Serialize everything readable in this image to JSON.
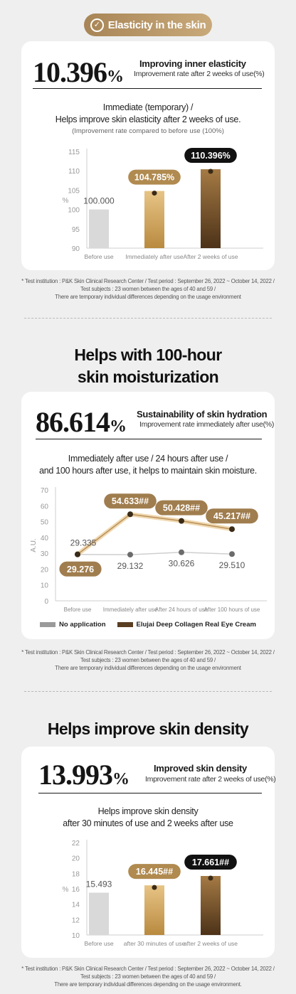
{
  "badge": {
    "label": "Elasticity in the skin"
  },
  "section1": {
    "big_value": "10.396",
    "big_unit": "%",
    "heading": "Improving inner elasticity",
    "sub": "Improvement rate after 2 weeks of use(%)",
    "desc_line1": "Immediate (temporary) /",
    "desc_line2": "Helps improve skin elasticity after 2 weeks of use.",
    "note": "(Improvement rate compared to before use (100%)",
    "chart_data": {
      "type": "bar",
      "categories": [
        "Before use",
        "Immediately after use",
        "After 2 weeks of use"
      ],
      "values": [
        100.0,
        104.785,
        110.396
      ],
      "labels": [
        "100.000",
        "104.785%",
        "110.396%"
      ],
      "ylabel": "%",
      "ylim": [
        90,
        115
      ],
      "yticks": [
        "90",
        "95",
        "100",
        "105",
        "110",
        "115"
      ],
      "colors": [
        "#d9d9d9",
        "#c79e55",
        "#6e4a23"
      ]
    },
    "footnote_line1": "* Test institution : P&K Skin Clinical Research Center / Test period : September 26, 2022 ~ October 14, 2022 /",
    "footnote_line2": "Test subjects : 23 women between the ages of 40 and 59 /",
    "footnote_line3": "There are temporary individual differences depending on the usage environment"
  },
  "section2": {
    "title_line1": "Helps with 100-hour",
    "title_line2": "skin moisturization",
    "big_value": "86.614",
    "big_unit": "%",
    "heading": "Sustainability of skin hydration",
    "sub": "Improvement rate immediately after use(%)",
    "desc_line1": "Immediately after use / 24 hours after use /",
    "desc_line2": "and 100 hours after use, it helps to maintain skin moisture.",
    "chart_data": {
      "type": "line",
      "x": [
        "Before use",
        "Immediately after use",
        "After 24 hours of use",
        "After 100 hours of use"
      ],
      "ylabel": "A.U.",
      "ylim": [
        0,
        70
      ],
      "yticks": [
        "0",
        "10",
        "20",
        "30",
        "40",
        "50",
        "60",
        "70"
      ],
      "series": [
        {
          "name": "No application",
          "values": [
            29.276,
            29.132,
            30.626,
            29.51
          ],
          "labels": [
            "29.276",
            "29.132",
            "30.626",
            "29.510"
          ],
          "color": "#9a9a9a"
        },
        {
          "name": "Elujai Deep Collagen Real Eye Cream",
          "values": [
            29.335,
            54.633,
            50.428,
            45.217
          ],
          "labels": [
            "29.335",
            "54.633##",
            "50.428##",
            "45.217##"
          ],
          "color": "#5a3e22"
        }
      ]
    },
    "footnote_line1": "* Test institution : P&K Skin Clinical Research Center / Test period : September 26, 2022 ~ October 14, 2022 /",
    "footnote_line2": "Test subjects : 23 women between the ages of 40 and 59 /",
    "footnote_line3": "There are temporary individual differences depending on the usage environment"
  },
  "section3": {
    "title": "Helps improve skin density",
    "big_value": "13.993",
    "big_unit": "%",
    "heading": "Improved skin density",
    "sub": "Improvement rate after 2 weeks of use(%)",
    "desc_line1": "Helps improve skin density",
    "desc_line2": "after 30 minutes of use and 2 weeks after use",
    "chart_data": {
      "type": "bar",
      "categories": [
        "Before use",
        "after 30 minutes of use",
        "after 2 weeks of use"
      ],
      "values": [
        15.493,
        16.445,
        17.661
      ],
      "labels": [
        "15.493",
        "16.445##",
        "17.661##"
      ],
      "ylabel": "%",
      "ylim": [
        10,
        22
      ],
      "yticks": [
        "10",
        "12",
        "14",
        "16",
        "18",
        "20",
        "22"
      ],
      "colors": [
        "#d9d9d9",
        "#c79e55",
        "#6e4a23"
      ]
    },
    "footnote_line1": "* Test institution : P&K Skin Clinical Research Center / Test period : September 26, 2022 ~ October 14, 2022 /",
    "footnote_line2": "Test subjects : 23 women between the ages of 40 and 59 /",
    "footnote_line3": "There are temporary individual differences depending on the usage environment."
  }
}
